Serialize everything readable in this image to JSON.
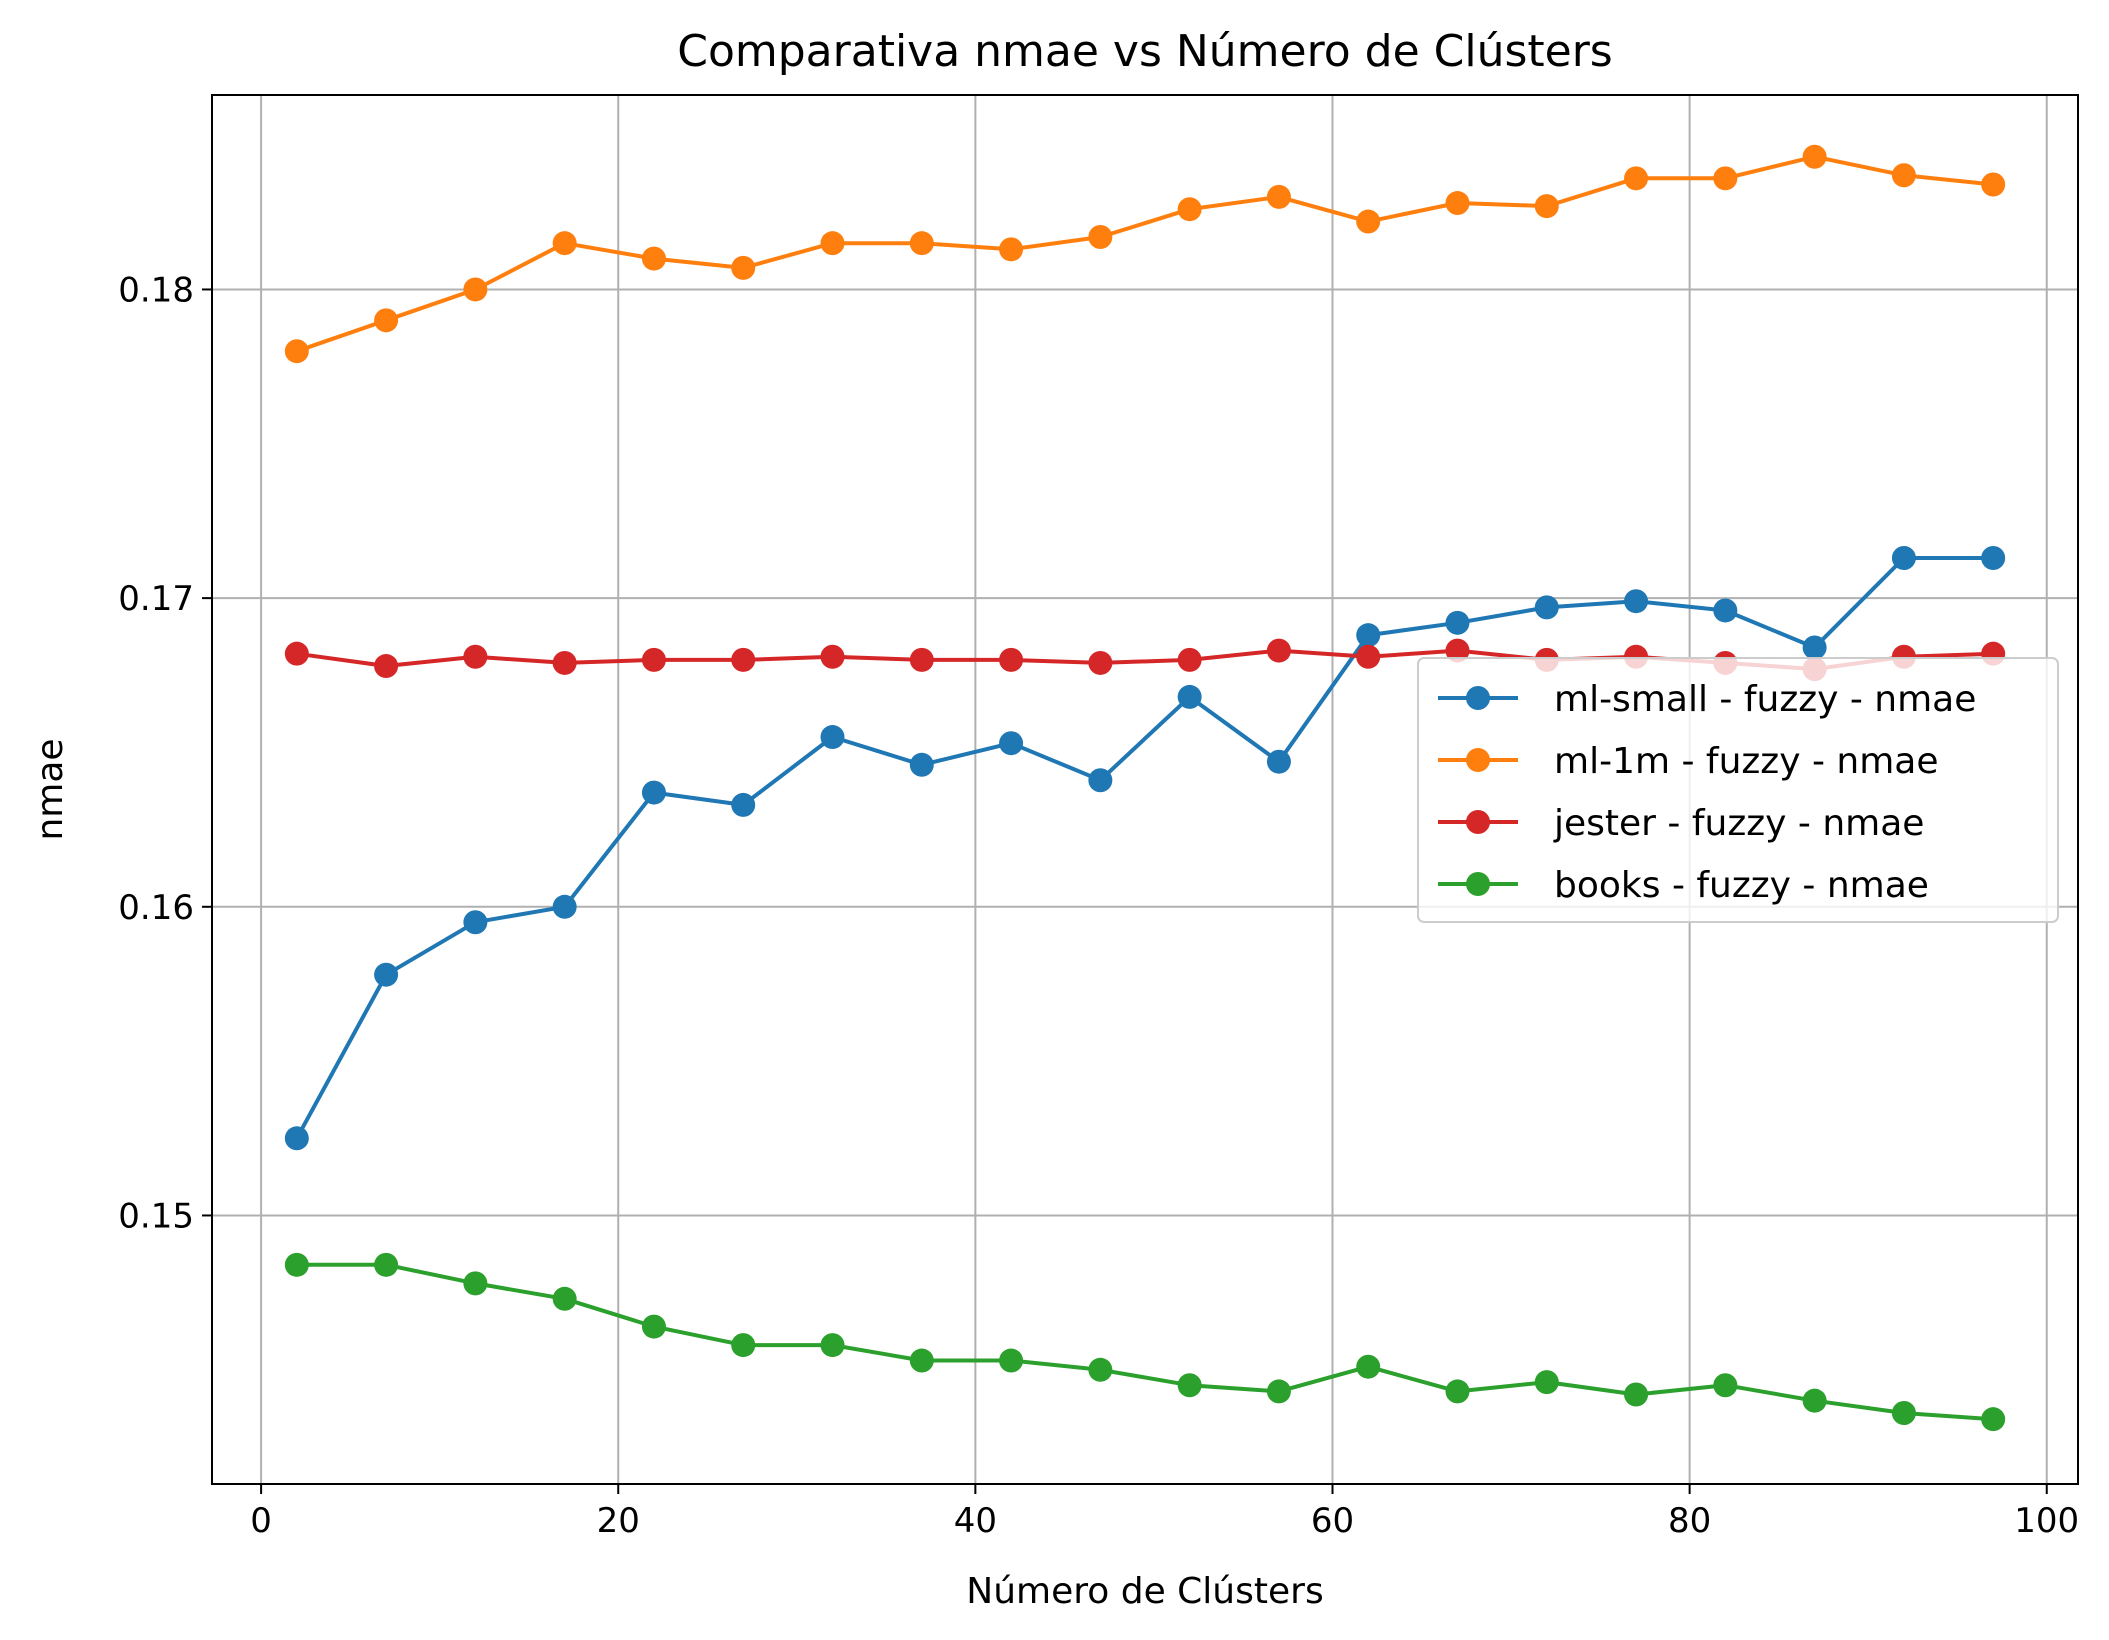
{
  "chart_data": {
    "type": "line",
    "title": "Comparativa nmae vs Número de Clústers",
    "xlabel": "Número de Clústers",
    "ylabel": "nmae",
    "xlim": [
      -2.75,
      101.75
    ],
    "ylim": [
      0.1413,
      0.1863
    ],
    "xticks": [
      0,
      20,
      40,
      60,
      80,
      100
    ],
    "yticks": [
      0.15,
      0.16,
      0.17,
      0.18
    ],
    "xtick_labels": [
      "0",
      "20",
      "40",
      "60",
      "80",
      "100"
    ],
    "ytick_labels": [
      "0.15",
      "0.16",
      "0.17",
      "0.18"
    ],
    "grid": true,
    "legend_position": "center-right",
    "x": [
      2,
      7,
      12,
      17,
      22,
      27,
      32,
      37,
      42,
      47,
      52,
      57,
      62,
      67,
      72,
      77,
      82,
      87,
      92,
      97
    ],
    "series": [
      {
        "name": "ml-small - fuzzy - nmae",
        "color": "#1f77b4",
        "values": [
          0.1525,
          0.1578,
          0.1595,
          0.16,
          0.1637,
          0.1633,
          0.1655,
          0.1646,
          0.1653,
          0.1641,
          0.1668,
          0.1647,
          0.1688,
          0.1692,
          0.1697,
          0.1699,
          0.1696,
          0.1684,
          0.1713,
          0.1713
        ]
      },
      {
        "name": "ml-1m - fuzzy - nmae",
        "color": "#ff7f0e",
        "values": [
          0.178,
          0.179,
          0.18,
          0.1815,
          0.181,
          0.1807,
          0.1815,
          0.1815,
          0.1813,
          0.1817,
          0.1826,
          0.183,
          0.1822,
          0.1828,
          0.1827,
          0.1836,
          0.1836,
          0.1843,
          0.1837,
          0.1834
        ]
      },
      {
        "name": "jester - fuzzy - nmae",
        "color": "#d62728",
        "values": [
          0.1682,
          0.1678,
          0.1681,
          0.1679,
          0.168,
          0.168,
          0.1681,
          0.168,
          0.168,
          0.1679,
          0.168,
          0.1683,
          0.1681,
          0.1683,
          0.168,
          0.1681,
          0.1679,
          0.1677,
          0.1681,
          0.1682
        ]
      },
      {
        "name": "books - fuzzy - nmae",
        "color": "#2ca02c",
        "values": [
          0.1484,
          0.1484,
          0.1478,
          0.1473,
          0.1464,
          0.1458,
          0.1458,
          0.1453,
          0.1453,
          0.145,
          0.1445,
          0.1443,
          0.1451,
          0.1443,
          0.1446,
          0.1442,
          0.1445,
          0.144,
          0.1436,
          0.1434
        ]
      }
    ]
  }
}
